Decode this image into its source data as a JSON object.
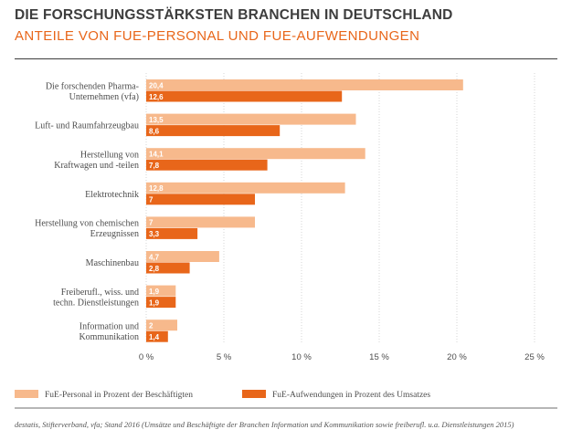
{
  "title": "DIE FORSCHUNGSSTÄRKSTEN BRANCHEN IN DEUTSCHLAND",
  "subtitle": "ANTEILE VON FUE-PERSONAL UND FUE-AUFWENDUNGEN",
  "source": "destatis, Stifterverband, vfa; Stand 2016 (Umsätze und Beschäftigte der Branchen Information und Kommunikation sowie freiberufl. u.a. Dienstleistungen 2015)",
  "colors": {
    "personal": "#f7b98c",
    "aufwendungen": "#e8661a",
    "grid": "#bbbbbb",
    "text": "#4d4d4d"
  },
  "chart_data": {
    "type": "bar",
    "orientation": "horizontal",
    "categories": [
      [
        "Die forschenden Pharma-",
        "Unternehmen (vfa)"
      ],
      [
        "Luft- und Raumfahrzeugbau"
      ],
      [
        "Herstellung von",
        "Kraftwagen und -teilen"
      ],
      [
        "Elektrotechnik"
      ],
      [
        "Herstellung von chemischen",
        "Erzeugnissen"
      ],
      [
        "Maschinenbau"
      ],
      [
        "Freiberufl., wiss. und",
        "techn. Dienstleistungen"
      ],
      [
        "Information und",
        "Kommunikation"
      ]
    ],
    "series": [
      {
        "name": "FuE-Personal in Prozent der Beschäftigten",
        "values": [
          20.4,
          13.5,
          14.1,
          12.8,
          7,
          4.7,
          1.9,
          2
        ],
        "labels": [
          "20,4",
          "13,5",
          "14,1",
          "12,8",
          "7",
          "4,7",
          "1,9",
          "2"
        ]
      },
      {
        "name": "FuE-Aufwendungen in Prozent des Umsatzes",
        "values": [
          12.6,
          8.6,
          7.8,
          7,
          3.3,
          2.8,
          1.9,
          1.4
        ],
        "labels": [
          "12,6",
          "8,6",
          "7,8",
          "7",
          "3,3",
          "2,8",
          "1,9",
          "1,4"
        ]
      }
    ],
    "xlim": [
      0,
      25
    ],
    "xticks": [
      0,
      5,
      10,
      15,
      20,
      25
    ],
    "xtick_labels": [
      "0 %",
      "5 %",
      "10 %",
      "15 %",
      "20 %",
      "25 %"
    ],
    "grid": true,
    "legend_position": "bottom"
  }
}
